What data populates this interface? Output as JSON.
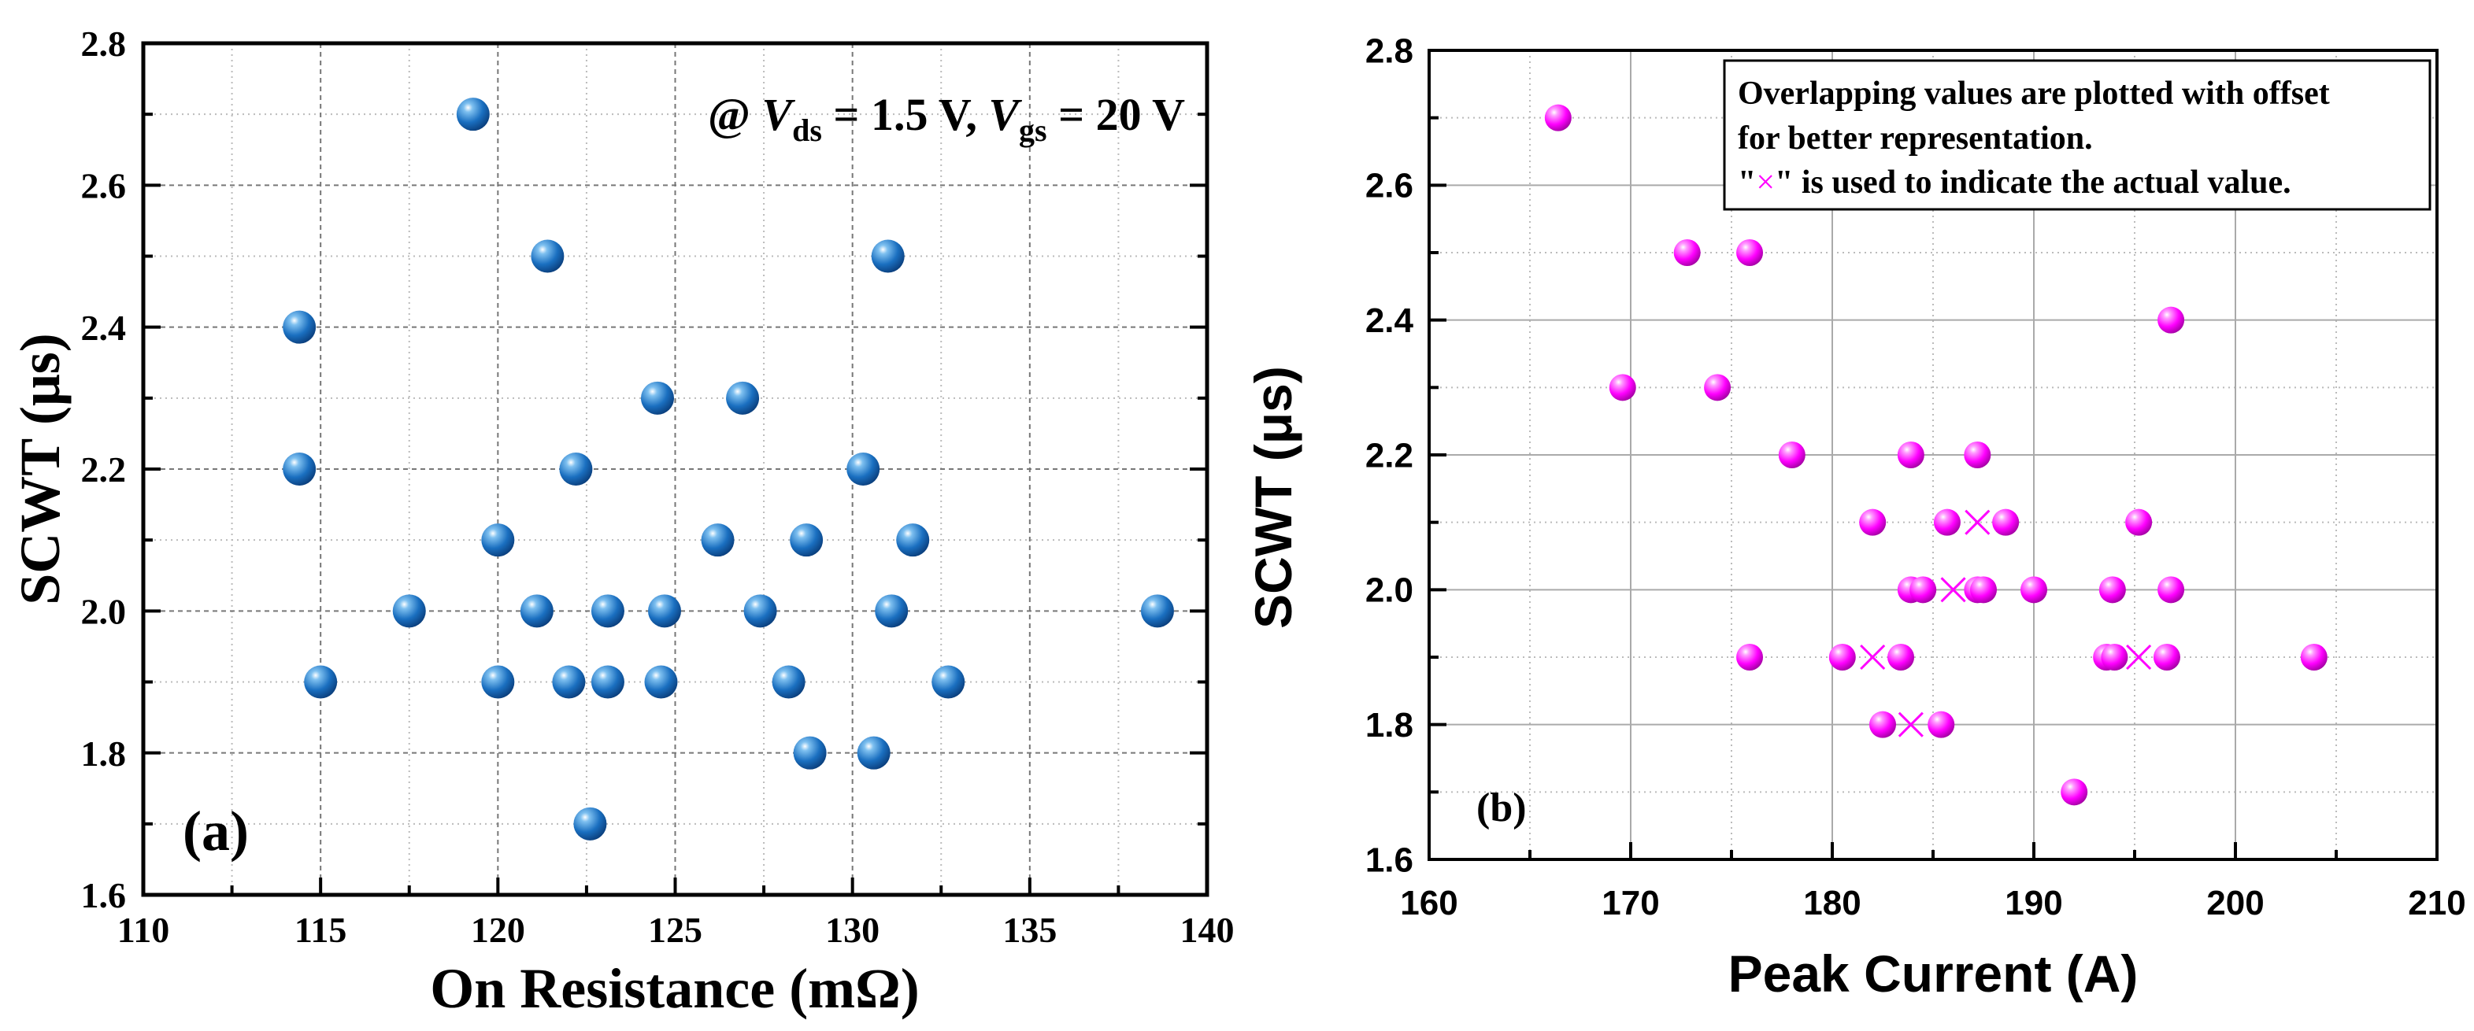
{
  "chart_data": [
    {
      "type": "scatter",
      "panel_label": "(a)",
      "xlabel": "On Resistance (mΩ)",
      "ylabel": "SCWT (μs)",
      "annotation": {
        "prefix": "@ ",
        "v1": "V",
        "v1_sub": "ds",
        "mid": " = 1.5 V, ",
        "v2": "V",
        "v2_sub": "gs",
        "suffix": " = 20 V"
      },
      "xlim": [
        110,
        140
      ],
      "ylim": [
        1.6,
        2.8
      ],
      "xticks": [
        "110",
        "115",
        "120",
        "125",
        "130",
        "135",
        "140"
      ],
      "yticks": [
        "1.6",
        "1.8",
        "2.0",
        "2.2",
        "2.4",
        "2.6",
        "2.8"
      ],
      "grid": true,
      "marker_color": "#1a6fc0",
      "x": [
        119.3,
        121.4,
        131.0,
        114.4,
        124.5,
        126.9,
        114.4,
        122.2,
        130.3,
        120.0,
        126.2,
        128.7,
        131.7,
        117.5,
        121.1,
        123.1,
        124.7,
        127.4,
        131.1,
        138.6,
        115.0,
        120.0,
        122.0,
        123.1,
        124.6,
        128.2,
        132.7,
        128.8,
        130.6,
        122.6
      ],
      "y": [
        2.7,
        2.5,
        2.5,
        2.4,
        2.3,
        2.3,
        2.2,
        2.2,
        2.2,
        2.1,
        2.1,
        2.1,
        2.1,
        2.0,
        2.0,
        2.0,
        2.0,
        2.0,
        2.0,
        2.0,
        1.9,
        1.9,
        1.9,
        1.9,
        1.9,
        1.9,
        1.9,
        1.8,
        1.8,
        1.7
      ]
    },
    {
      "type": "scatter",
      "panel_label": "(b)",
      "xlabel": "Peak Current (A)",
      "ylabel": "SCWT (μs)",
      "note": [
        "Overlapping values are plotted with offset",
        "for better representation.",
        "\"",
        "×",
        "\" is used to indicate the actual value."
      ],
      "xlim": [
        160,
        210
      ],
      "ylim": [
        1.6,
        2.8
      ],
      "xticks": [
        "160",
        "170",
        "180",
        "190",
        "200",
        "210"
      ],
      "yticks": [
        "1.6",
        "1.8",
        "2.0",
        "2.2",
        "2.4",
        "2.6",
        "2.8"
      ],
      "grid": true,
      "marker_color": "#ff00ff",
      "x": [
        166.4,
        172.8,
        175.9,
        196.8,
        169.6,
        174.3,
        178.0,
        183.9,
        187.2,
        182.0,
        185.7,
        188.6,
        195.2,
        183.9,
        184.5,
        187.2,
        187.5,
        190.0,
        193.9,
        196.8,
        175.9,
        180.5,
        183.4,
        193.6,
        194.0,
        196.6,
        203.9,
        182.5,
        185.4,
        192.0
      ],
      "y": [
        2.7,
        2.5,
        2.5,
        2.4,
        2.3,
        2.3,
        2.2,
        2.2,
        2.2,
        2.1,
        2.1,
        2.1,
        2.1,
        2.0,
        2.0,
        2.0,
        2.0,
        2.0,
        2.0,
        2.0,
        1.9,
        1.9,
        1.9,
        1.9,
        1.9,
        1.9,
        1.9,
        1.8,
        1.8,
        1.7
      ],
      "actual_values": {
        "x": [
          187.2,
          186.0,
          182.0,
          195.2,
          183.9
        ],
        "y": [
          2.1,
          2.0,
          1.9,
          1.9,
          1.8
        ]
      }
    }
  ]
}
